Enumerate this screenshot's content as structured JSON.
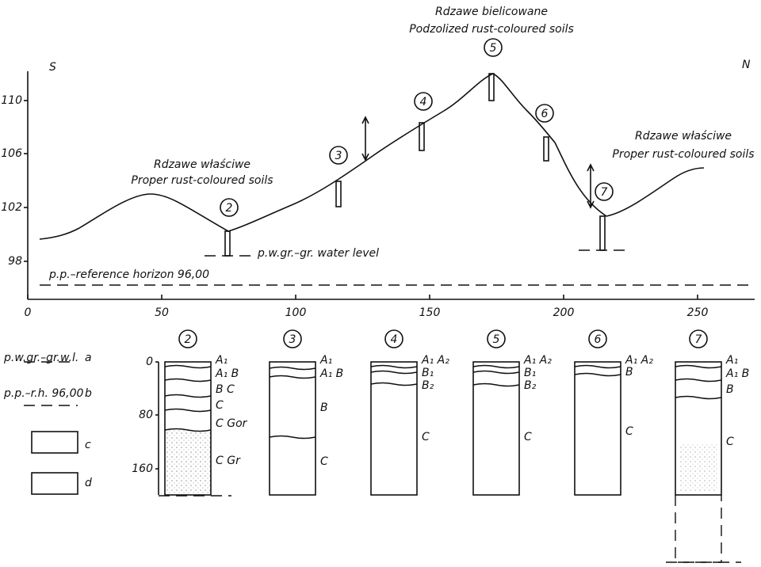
{
  "header": {
    "title_pl": "Rdzawe bielicowane",
    "title_en": "Podzolized rust-coloured soils"
  },
  "profile": {
    "left_direction": "S",
    "right_direction": "N",
    "y_ticks": [
      "98",
      "102",
      "106",
      "110"
    ],
    "x_ticks": [
      "0",
      "50",
      "100",
      "150",
      "200",
      "250"
    ],
    "sites": [
      "2",
      "3",
      "4",
      "5",
      "6",
      "7"
    ],
    "annotations": [
      {
        "line1": "Rdzawe właściwe",
        "line2": "Proper rust-coloured soils"
      },
      {
        "line1": "Rdzawe właściwe",
        "line2": "Proper rust-coloured soils"
      }
    ],
    "water_level_label": "p.w.gr.–gr. water level",
    "reference_label": "p.p.–reference horizon 96,00"
  },
  "legend": [
    {
      "label": "p.w.gr.–gr.w.l.",
      "key": "a"
    },
    {
      "label": "p.p.–r.h. 96,00",
      "key": "b"
    },
    {
      "key": "c"
    },
    {
      "key": "d"
    }
  ],
  "columns": {
    "depth_ticks": [
      "0",
      "80",
      "160"
    ],
    "items": [
      {
        "number": "2",
        "horizons": [
          "A₁",
          "A₁ B",
          "B C",
          "C",
          "C Gor",
          "C Gr"
        ]
      },
      {
        "number": "3",
        "horizons": [
          "A₁",
          "A₁ B",
          "B",
          "C"
        ]
      },
      {
        "number": "4",
        "horizons": [
          "A₁ A₂",
          "B₁",
          "B₂",
          "C"
        ]
      },
      {
        "number": "5",
        "horizons": [
          "A₁ A₂",
          "B₁",
          "B₂",
          "C"
        ]
      },
      {
        "number": "6",
        "horizons": [
          "A₁ A₂",
          "B",
          "C"
        ]
      },
      {
        "number": "7",
        "horizons": [
          "A₁",
          "A₁ B",
          "B",
          "C"
        ]
      }
    ]
  }
}
